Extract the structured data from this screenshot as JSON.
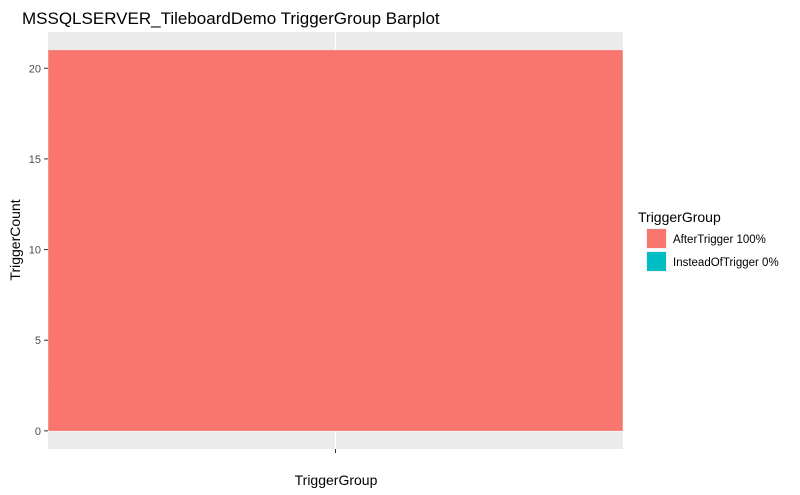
{
  "chart_data": {
    "type": "bar",
    "title": "MSSQLSERVER_TileboardDemo TriggerGroup Barplot",
    "xlabel": "TriggerGroup",
    "ylabel": "TriggerCount",
    "stacked": true,
    "categories": [
      ""
    ],
    "series": [
      {
        "name": "AfterTrigger",
        "values": [
          21
        ],
        "color": "#F8766D"
      },
      {
        "name": "InsteadOfTrigger",
        "values": [
          0
        ],
        "color": "#00BFC4"
      }
    ],
    "ylim": [
      -1,
      22
    ],
    "yticks": [
      0,
      5,
      10,
      15,
      20
    ],
    "grid": true,
    "panel_background": "#EBEBEB",
    "legend": {
      "title": "TriggerGroup",
      "position": "right",
      "entries": [
        {
          "label": "AfterTrigger 100%",
          "color": "#F8766D"
        },
        {
          "label": "InsteadOfTrigger 0%",
          "color": "#00BFC4"
        }
      ]
    }
  }
}
